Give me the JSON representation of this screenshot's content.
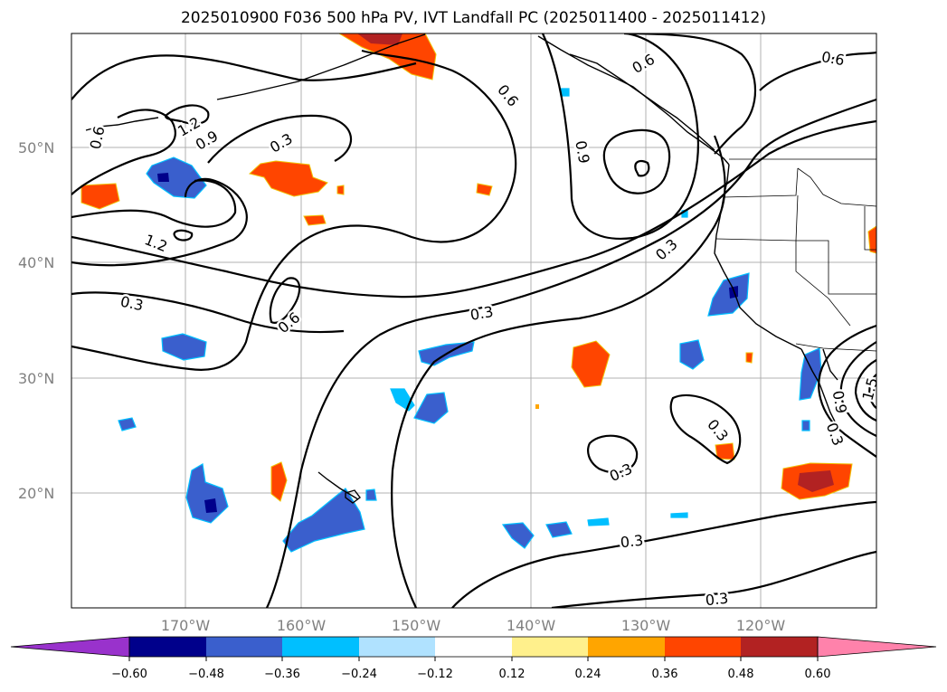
{
  "title": "2025010900 F036 500 hPa PV, IVT Landfall PC (2025011400 - 2025011412)",
  "map": {
    "lat_labels": [
      "50°N",
      "40°N",
      "30°N",
      "20°N"
    ],
    "lon_labels": [
      "170°W",
      "160°W",
      "150°W",
      "140°W",
      "130°W",
      "120°W"
    ],
    "contour_labels": [
      "0.6",
      "1.2",
      "0.9",
      "0.3",
      "1.2",
      "0.3",
      "0.6",
      "0.3",
      "0.6",
      "0.9",
      "0.6",
      "0.6",
      "0.3",
      "0.3",
      "0.3",
      "0.3",
      "0.3",
      "0.3",
      "1.5",
      "0.9"
    ],
    "gridlines": true
  },
  "colorbar": {
    "extend": "both",
    "tick_labels": [
      "−0.60",
      "−0.48",
      "−0.36",
      "−0.24",
      "−0.12",
      "0.12",
      "0.24",
      "0.36",
      "0.48",
      "0.60"
    ],
    "colors": {
      "below": "#9932cc",
      "bins": [
        "#00008b",
        "#3a5fcd",
        "#00bfff",
        "#b0e2ff",
        "#ffffff",
        "#fff08c",
        "#ffa500",
        "#ff4500",
        "#b22222"
      ],
      "above": "#ff82ab"
    }
  }
}
